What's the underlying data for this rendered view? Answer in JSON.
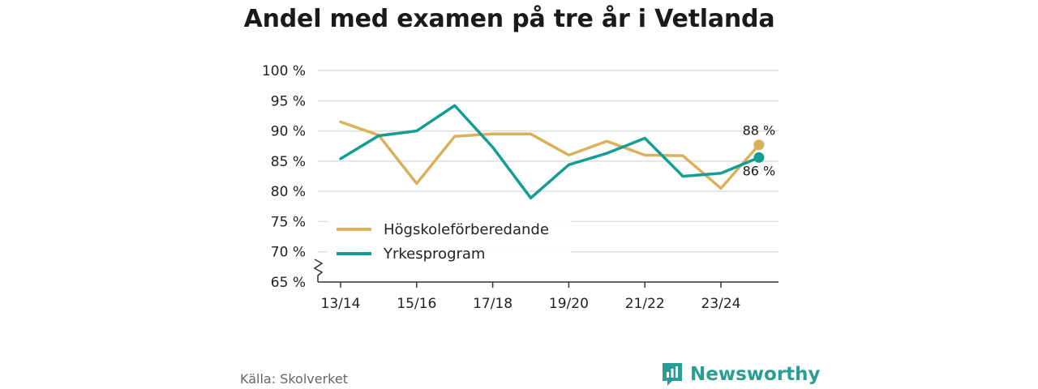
{
  "colors": {
    "hogskole": "#dbb05a",
    "yrkes": "#139e94",
    "grid": "#dedede",
    "brand": "#2a9d95"
  },
  "chart_data": {
    "type": "line",
    "title": "Andel med examen på tre år i Vetlanda",
    "xlabel": "",
    "ylabel": "",
    "x": [
      "13/14",
      "14/15",
      "15/16",
      "16/17",
      "17/18",
      "18/19",
      "19/20",
      "20/21",
      "21/22",
      "22/23",
      "23/24",
      "24/25"
    ],
    "x_tick_labels": [
      "13/14",
      "15/16",
      "17/18",
      "19/20",
      "21/22",
      "23/24"
    ],
    "ylim": [
      65,
      100
    ],
    "y_ticks": [
      65,
      70,
      75,
      80,
      85,
      90,
      95,
      100
    ],
    "y_tick_labels": [
      "65 %",
      "70 %",
      "75 %",
      "80 %",
      "85 %",
      "90 %",
      "95 %",
      "100 %"
    ],
    "grid": true,
    "axis_break": true,
    "legend": "bottom-left",
    "series": [
      {
        "name": "Högskoleförberedande",
        "color_key": "hogskole",
        "values": [
          91.5,
          89.3,
          81.3,
          89.1,
          89.5,
          89.5,
          86.0,
          88.3,
          86.0,
          85.9,
          80.5,
          87.7
        ],
        "end_label": "88 %"
      },
      {
        "name": "Yrkesprogram",
        "color_key": "yrkes",
        "values": [
          85.4,
          89.2,
          90.0,
          94.2,
          87.3,
          78.9,
          84.4,
          86.3,
          88.8,
          82.5,
          83.0,
          85.6
        ],
        "end_label": "86 %"
      }
    ]
  },
  "footer": {
    "source": "Källa: Skolverket",
    "brand": "Newsworthy"
  }
}
